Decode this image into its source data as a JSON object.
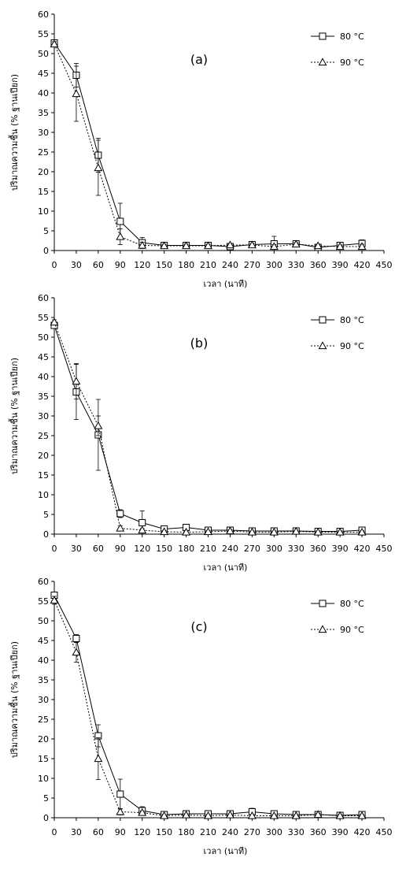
{
  "chart_data": [
    {
      "type": "line",
      "panel_label": "(a)",
      "xlabel": "เวลา (นาที)",
      "ylabel": "ปริมาณความชื้น (% ฐานเปียก)",
      "xlim": [
        0,
        450
      ],
      "ylim": [
        0,
        60
      ],
      "xticks": [
        0,
        30,
        60,
        90,
        120,
        150,
        180,
        210,
        240,
        270,
        300,
        330,
        360,
        390,
        420,
        450
      ],
      "yticks": [
        0,
        5,
        10,
        15,
        20,
        25,
        30,
        35,
        40,
        45,
        50,
        55,
        60
      ],
      "legend_position": "top-right",
      "grid": false,
      "x": [
        0,
        30,
        60,
        90,
        120,
        150,
        180,
        210,
        240,
        270,
        300,
        330,
        360,
        390,
        420
      ],
      "series": [
        {
          "name": "80 °C",
          "marker": "square",
          "line": "solid",
          "values": [
            52.7,
            44.5,
            24.2,
            7.4,
            2.0,
            1.3,
            1.3,
            1.3,
            1.0,
            1.5,
            1.7,
            1.7,
            0.8,
            1.3,
            1.8
          ],
          "errors": [
            0.8,
            3.0,
            4.3,
            4.6,
            1.3,
            0.6,
            0.5,
            0.5,
            0.5,
            0.5,
            1.9,
            0.7,
            0.5,
            0.4,
            0.9
          ]
        },
        {
          "name": "90 °C",
          "marker": "triangle",
          "line": "dotted",
          "values": [
            52.4,
            39.8,
            21.0,
            3.5,
            1.3,
            1.2,
            1.2,
            1.2,
            1.4,
            1.4,
            1.0,
            1.6,
            1.2,
            1.0,
            1.0
          ],
          "errors": [
            0.6,
            7.0,
            7.0,
            2.0,
            0.8,
            0.4,
            0.4,
            0.4,
            0.4,
            0.4,
            0.5,
            0.4,
            0.4,
            0.4,
            0.6
          ]
        }
      ]
    },
    {
      "type": "line",
      "panel_label": "(b)",
      "xlabel": "เวลา (นาที)",
      "ylabel": "ปริมาณความชื้น (% ฐานเปียก)",
      "xlim": [
        0,
        450
      ],
      "ylim": [
        0,
        60
      ],
      "xticks": [
        0,
        30,
        60,
        90,
        120,
        150,
        180,
        210,
        240,
        270,
        300,
        330,
        360,
        390,
        420,
        450
      ],
      "yticks": [
        0,
        5,
        10,
        15,
        20,
        25,
        30,
        35,
        40,
        45,
        50,
        55,
        60
      ],
      "legend_position": "top-right",
      "grid": false,
      "x": [
        0,
        30,
        60,
        90,
        120,
        150,
        180,
        210,
        240,
        270,
        300,
        330,
        360,
        390,
        420
      ],
      "series": [
        {
          "name": "80 °C",
          "marker": "square",
          "line": "solid",
          "values": [
            53.0,
            36.1,
            25.2,
            5.2,
            2.9,
            1.3,
            1.7,
            1.0,
            1.0,
            0.8,
            0.8,
            0.8,
            0.7,
            0.7,
            1.0
          ],
          "errors": [
            0.8,
            7.0,
            9.0,
            1.0,
            3.0,
            0.6,
            0.8,
            0.4,
            0.6,
            0.4,
            0.4,
            0.4,
            0.4,
            0.4,
            0.5
          ]
        },
        {
          "name": "90 °C",
          "marker": "triangle",
          "line": "dotted",
          "values": [
            53.8,
            38.8,
            27.5,
            1.5,
            1.0,
            0.6,
            0.5,
            0.6,
            0.8,
            0.5,
            0.5,
            0.7,
            0.5,
            0.5,
            0.5
          ],
          "errors": [
            0.6,
            4.5,
            2.5,
            0.6,
            0.4,
            0.3,
            0.3,
            0.3,
            0.3,
            0.3,
            0.3,
            0.3,
            0.3,
            0.3,
            0.3
          ]
        }
      ]
    },
    {
      "type": "line",
      "panel_label": "(c)",
      "xlabel": "เวลา (นาที)",
      "ylabel": "ปริมาณความชื้น (% ฐานเปียก)",
      "xlim": [
        0,
        450
      ],
      "ylim": [
        0,
        60
      ],
      "xticks": [
        0,
        30,
        60,
        90,
        120,
        150,
        180,
        210,
        240,
        270,
        300,
        330,
        360,
        390,
        420,
        450
      ],
      "yticks": [
        0,
        5,
        10,
        15,
        20,
        25,
        30,
        35,
        40,
        45,
        50,
        55,
        60
      ],
      "legend_position": "top-right",
      "grid": false,
      "x": [
        0,
        30,
        60,
        90,
        120,
        150,
        180,
        210,
        240,
        270,
        300,
        330,
        360,
        390,
        420
      ],
      "series": [
        {
          "name": "80 °C",
          "marker": "square",
          "line": "solid",
          "values": [
            56.5,
            45.5,
            20.8,
            6.0,
            1.8,
            0.8,
            1.0,
            1.0,
            1.0,
            1.5,
            1.0,
            0.8,
            0.8,
            0.6,
            0.8
          ],
          "errors": [
            0.8,
            1.0,
            2.8,
            3.8,
            1.0,
            0.4,
            0.5,
            0.5,
            0.5,
            0.9,
            0.5,
            0.4,
            0.4,
            0.4,
            0.4
          ]
        },
        {
          "name": "90 °C",
          "marker": "triangle",
          "line": "dotted",
          "values": [
            55.2,
            42.0,
            15.0,
            1.5,
            1.3,
            0.5,
            0.7,
            0.5,
            0.7,
            0.5,
            0.5,
            0.5,
            0.8,
            0.5,
            0.5
          ],
          "errors": [
            1.0,
            2.5,
            5.3,
            0.8,
            0.4,
            0.3,
            0.3,
            0.3,
            0.3,
            0.3,
            0.3,
            0.3,
            0.3,
            0.3,
            0.3
          ]
        }
      ]
    }
  ]
}
